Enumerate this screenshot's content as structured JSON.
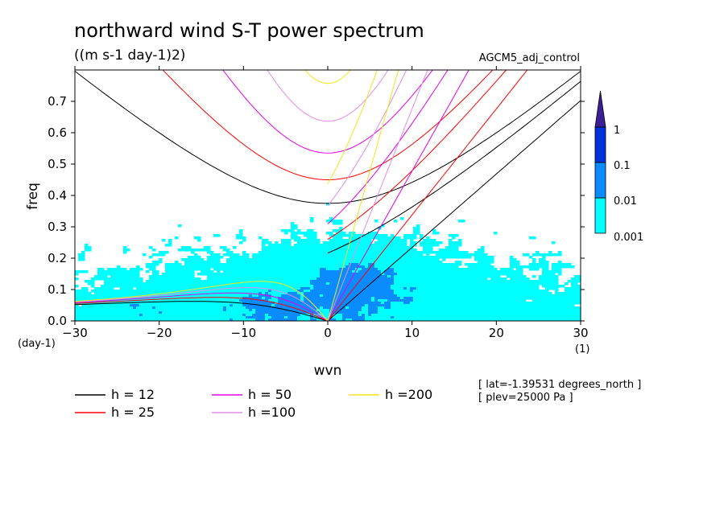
{
  "chart_data": {
    "type": "heatmap",
    "title": "northward wind S-T power spectrum",
    "units": "((m s-1 day-1)2)",
    "experiment": "AGCM5_adj_control",
    "xlabel": "wvn",
    "ylabel": "freq",
    "x_unit": "(1)",
    "y_unit": "(day-1)",
    "xlim": [
      -30,
      30
    ],
    "ylim": [
      0,
      0.8
    ],
    "x_ticks": [
      "-30",
      "-20",
      "-10",
      "0",
      "10",
      "20",
      "30"
    ],
    "y_ticks": [
      "0.0",
      "0.1",
      "0.2",
      "0.3",
      "0.4",
      "0.5",
      "0.6",
      "0.7"
    ],
    "colorbar": {
      "levels": [
        "0.001",
        "0.01",
        "0.1",
        "1"
      ],
      "colors": [
        "#00ffff",
        "#0a8cff",
        "#0032dc",
        "#0a0ab4",
        "#3c1e96"
      ]
    },
    "dispersion_curves": [
      {
        "label": "h = 12",
        "h": 12,
        "color": "#000000"
      },
      {
        "label": "h = 25",
        "h": 25,
        "color": "#ff0000"
      },
      {
        "label": "h = 50",
        "h": 50,
        "color": "#e600e6"
      },
      {
        "label": "h =100",
        "h": 100,
        "color": "#e68ce6"
      },
      {
        "label": "h =200",
        "h": 200,
        "color": "#f0e61e"
      }
    ],
    "info": [
      "[ lat=-1.39531 degrees_north ]",
      "[ plev=25000 Pa ]"
    ]
  }
}
